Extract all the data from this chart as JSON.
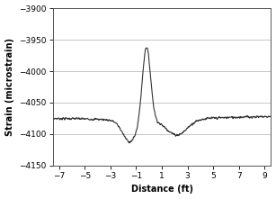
{
  "title": "",
  "xlabel": "Distance (ft)",
  "ylabel": "Strain (microstrain)",
  "xlim": [
    -7.5,
    9.5
  ],
  "ylim": [
    -4150,
    -3900
  ],
  "xticks": [
    -7,
    -5,
    -3,
    -1,
    1,
    3,
    5,
    7,
    9
  ],
  "yticks": [
    -4150,
    -4100,
    -4050,
    -4000,
    -3950,
    -3900
  ],
  "line_color": "#333333",
  "line_width": 0.8,
  "bg_color": "#ffffff",
  "grid_color": "#b0b0b0",
  "baseline": -4075,
  "peak_x": -0.2,
  "peak_y": -3955,
  "trough1_x": -1.5,
  "trough1_y": -4108,
  "trough2_x": 2.2,
  "trough2_y": -4098,
  "noise_amplitude": 1.5,
  "num_points": 800
}
